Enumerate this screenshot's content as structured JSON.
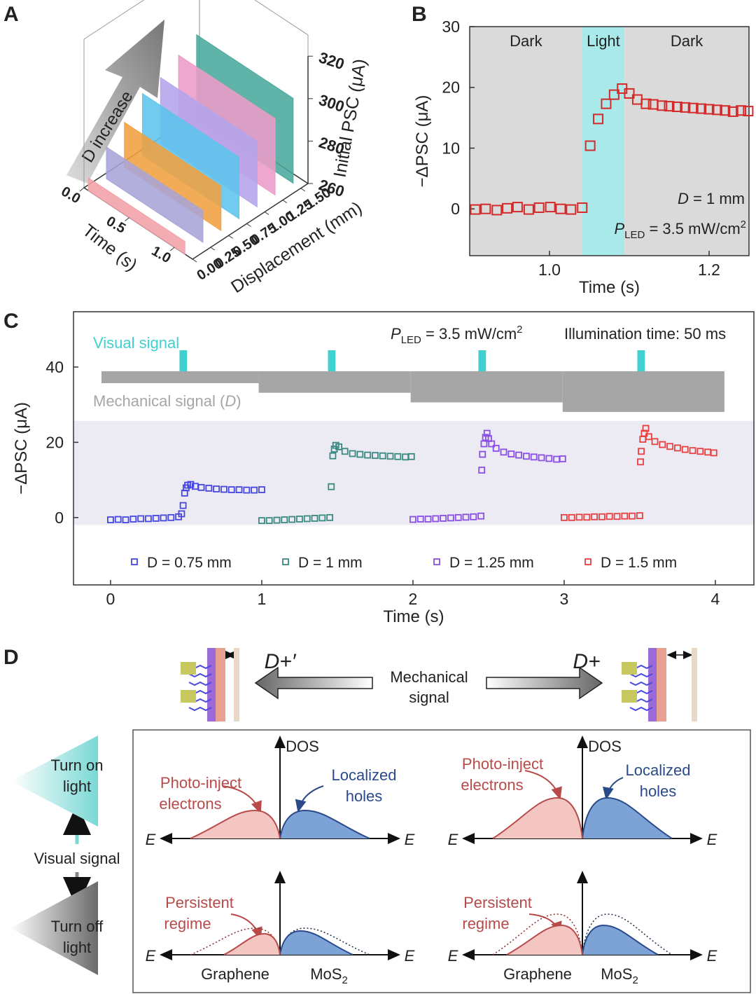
{
  "panel_labels": [
    "A",
    "B",
    "C",
    "D"
  ],
  "chart_data": [
    {
      "type": "waterfall3d",
      "annotation": "D increase",
      "xlabel": "Time (s)",
      "ylabel": "Displacement (mm)",
      "zlabel": "Initial PSC (μA)",
      "xlim": [
        0,
        1.2
      ],
      "xticks": [
        {
          "value": 0,
          "label": "0.0"
        },
        {
          "value": 0.5,
          "label": "0.5"
        },
        {
          "value": 1,
          "label": "1.0"
        }
      ],
      "ylim": [
        0,
        1.6
      ],
      "yticks": [
        {
          "value": 0,
          "label": "0.00"
        },
        {
          "value": 0.25,
          "label": "0.25"
        },
        {
          "value": 0.5,
          "label": "0.50"
        },
        {
          "value": 0.75,
          "label": "0.75"
        },
        {
          "value": 1,
          "label": "1.00"
        },
        {
          "value": 1.25,
          "label": "1.25"
        },
        {
          "value": 1.5,
          "label": "1.50"
        }
      ],
      "zlim": [
        260,
        320
      ],
      "zticks": [
        260,
        280,
        300,
        320
      ],
      "displacements": [
        0,
        0.25,
        0.5,
        0.75,
        1,
        1.25,
        1.5
      ],
      "values": [
        266,
        275,
        281,
        289,
        291,
        296,
        300
      ],
      "colors": [
        "#f2a0a8",
        "#a8a4d8",
        "#f0a040",
        "#5cc4ec",
        "#b4a4ec",
        "#ec9cc8",
        "#4aa89c"
      ]
    },
    {
      "type": "scatter",
      "xlabel": "Time (s)",
      "ylabel": "−ΔPSC (μA)",
      "xlim": [
        0.9,
        1.25
      ],
      "xticks": [
        {
          "value": 1,
          "label": "1.0"
        },
        {
          "value": 1.2,
          "label": "1.2"
        }
      ],
      "ylim": [
        -7.7,
        30
      ],
      "yticks": [
        0,
        10,
        20,
        30
      ],
      "regions": [
        {
          "label": "Dark",
          "span": [
            0.9,
            1.041
          ],
          "color": "#dadada"
        },
        {
          "label": "Light",
          "span": [
            1.041,
            1.094
          ],
          "color": "#a9e9e9"
        },
        {
          "label": "Dark",
          "span": [
            1.094,
            1.25
          ],
          "color": "#dadada"
        }
      ],
      "d_note": {
        "d": "D",
        "rest": " = 1 mm"
      },
      "p_led": {
        "p": "P",
        "sub": "LED",
        "main": " = 3.5 mW/cm",
        "sup": "2"
      },
      "series": [
        {
          "color": "#d42a2a",
          "x": [
            0.907,
            0.92,
            0.934,
            0.947,
            0.96,
            0.974,
            0.987,
            1.001,
            1.014,
            1.027,
            1.041,
            1.051,
            1.061,
            1.071,
            1.081,
            1.091,
            1.1,
            1.11,
            1.121,
            1.13,
            1.141,
            1.15,
            1.16,
            1.17,
            1.18,
            1.19,
            1.2,
            1.21,
            1.22,
            1.23,
            1.24,
            1.249
          ],
          "values": [
            -0.1,
            0,
            -0.2,
            0.1,
            0.3,
            -0.1,
            0.2,
            0.3,
            0,
            -0.1,
            0.2,
            10.4,
            14.8,
            17.3,
            18.8,
            19.8,
            19,
            18,
            17.3,
            17.2,
            17,
            16.9,
            16.8,
            16.7,
            16.6,
            16.5,
            16.4,
            16.3,
            16.2,
            16,
            16.2,
            16.1
          ]
        }
      ]
    },
    {
      "type": "scatter",
      "xlabel": "Time (s)",
      "ylabel": "−ΔPSC (μA)",
      "xlim": [
        -0.245,
        4.255
      ],
      "xticks": [
        0,
        1,
        2,
        3,
        4
      ],
      "ylim": [
        -17.9,
        54.7
      ],
      "yticks": [
        0,
        20,
        40
      ],
      "band": [
        -2,
        25.7
      ],
      "band_color": "#ecebf3",
      "visual_signal": {
        "label": "Visual signal",
        "color": "#40d0d0",
        "x": [
          0.481,
          1.463,
          2.458,
          3.509
        ],
        "width": 0.05
      },
      "mechanical_signal": {
        "text": "Mechanical signal (",
        "d": "D",
        "close": ")",
        "color": "#a6a6a6",
        "steps": [
          -0.06,
          0.98,
          1.985,
          2.99,
          4.06
        ]
      },
      "p_led": {
        "p": "P",
        "sub": "LED",
        "main": " = 3.5 mW/cm",
        "sup": "2"
      },
      "illumination": "Illumination time: 50 ms",
      "legend": "bottom",
      "series": [
        {
          "name": "D = 0.75 mm",
          "color": "#4646e0",
          "x": [
            0,
            0.05,
            0.1,
            0.15,
            0.2,
            0.25,
            0.3,
            0.35,
            0.4,
            0.45,
            0.47,
            0.48,
            0.49,
            0.5,
            0.51,
            0.53,
            0.56,
            0.6,
            0.65,
            0.7,
            0.75,
            0.8,
            0.85,
            0.9,
            0.95,
            1.0
          ],
          "values": [
            -0.6,
            -0.5,
            -0.6,
            -0.4,
            -0.3,
            -0.3,
            -0.2,
            -0.1,
            0,
            0.2,
            1,
            3.2,
            6.5,
            7.9,
            8.6,
            8.8,
            8.3,
            8,
            7.8,
            7.6,
            7.5,
            7.4,
            7.4,
            7.3,
            7.3,
            7.4
          ]
        },
        {
          "name": "D = 1 mm",
          "color": "#3a8a80",
          "x": [
            1,
            1.05,
            1.1,
            1.15,
            1.2,
            1.25,
            1.3,
            1.35,
            1.4,
            1.45,
            1.46,
            1.47,
            1.48,
            1.49,
            1.51,
            1.55,
            1.6,
            1.65,
            1.7,
            1.75,
            1.8,
            1.85,
            1.9,
            1.95,
            1.99
          ],
          "values": [
            -0.8,
            -0.8,
            -0.7,
            -0.6,
            -0.5,
            -0.4,
            -0.3,
            -0.2,
            -0.1,
            0,
            8.2,
            16.4,
            18.2,
            19.2,
            18.8,
            17.6,
            17,
            16.8,
            16.6,
            16.5,
            16.4,
            16.3,
            16.2,
            16.1,
            16.2
          ]
        },
        {
          "name": "D = 1.25 mm",
          "color": "#8a4ee8",
          "x": [
            2,
            2.05,
            2.1,
            2.15,
            2.2,
            2.25,
            2.3,
            2.35,
            2.4,
            2.45,
            2.455,
            2.46,
            2.47,
            2.48,
            2.49,
            2.5,
            2.52,
            2.55,
            2.6,
            2.65,
            2.7,
            2.75,
            2.8,
            2.85,
            2.9,
            2.95,
            2.99
          ],
          "values": [
            -0.5,
            -0.4,
            -0.4,
            -0.3,
            -0.2,
            -0.1,
            0,
            0.1,
            0.2,
            0.4,
            12.6,
            16.8,
            19.6,
            21.3,
            22.4,
            21,
            19.6,
            18.4,
            17.4,
            16.9,
            16.6,
            16.3,
            16.1,
            15.9,
            15.7,
            15.5,
            15.6
          ]
        },
        {
          "name": "D = 1.5 mm",
          "color": "#e84040",
          "x": [
            3,
            3.05,
            3.1,
            3.15,
            3.2,
            3.25,
            3.3,
            3.35,
            3.4,
            3.45,
            3.5,
            3.505,
            3.51,
            3.52,
            3.53,
            3.54,
            3.56,
            3.6,
            3.65,
            3.7,
            3.75,
            3.8,
            3.85,
            3.9,
            3.95,
            3.99
          ],
          "values": [
            0,
            0,
            0.1,
            0.1,
            0.2,
            0.2,
            0.3,
            0.3,
            0.4,
            0.4,
            0.5,
            14.8,
            17.6,
            20.8,
            22.4,
            23.7,
            21.5,
            20.2,
            19.4,
            18.9,
            18.5,
            18.1,
            17.8,
            17.6,
            17.4,
            17.2
          ]
        }
      ]
    }
  ],
  "diagram": {
    "left_arrow": "D+′",
    "right_arrow": "D+",
    "mechanical": [
      "Mechanical",
      "signal"
    ],
    "turn_on": [
      "Turn on",
      "light"
    ],
    "visual": "Visual signal",
    "turn_off": [
      "Turn off",
      "light"
    ],
    "dos": "DOS",
    "energy": "E",
    "photo": [
      "Photo-inject",
      "electrons"
    ],
    "holes": [
      "Localized",
      "holes"
    ],
    "persistent": [
      "Persistent",
      "regime"
    ],
    "graphene": "Graphene",
    "mos2": {
      "base": "MoS",
      "sub": "2"
    }
  }
}
